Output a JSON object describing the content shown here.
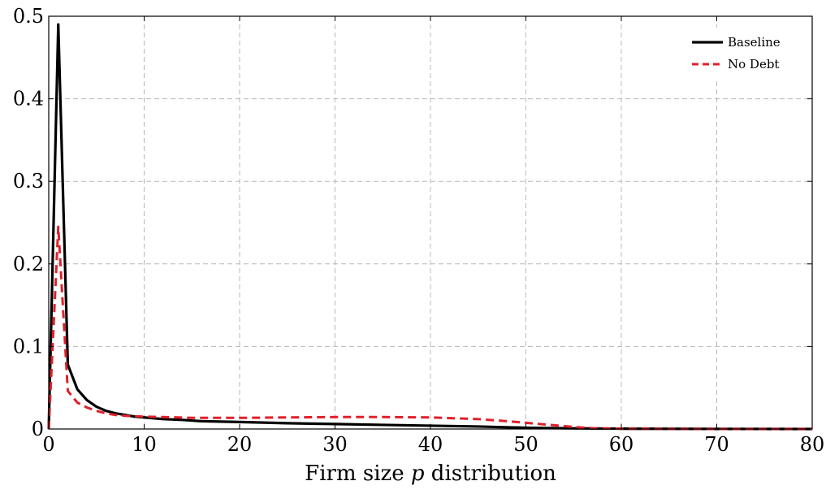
{
  "chart_data": {
    "type": "line",
    "title": "",
    "xlabel_prefix": "Firm size ",
    "xlabel_var": "p",
    "xlabel_suffix": " distribution",
    "ylabel": "",
    "xlim": [
      0,
      80
    ],
    "ylim": [
      0,
      0.5
    ],
    "xticks": [
      0,
      10,
      20,
      30,
      40,
      50,
      60,
      70,
      80
    ],
    "yticks": [
      0,
      0.1,
      0.2,
      0.3,
      0.4,
      0.5
    ],
    "xtick_labels": [
      "0",
      "10",
      "20",
      "30",
      "40",
      "50",
      "60",
      "70",
      "80"
    ],
    "ytick_labels": [
      "0",
      "0.1",
      "0.2",
      "0.3",
      "0.4",
      "0.5"
    ],
    "grid": true,
    "legend_position": "top-right",
    "series": [
      {
        "name": "Baseline",
        "color": "#000000",
        "style": "solid",
        "x": [
          0,
          1,
          2,
          3,
          4,
          5,
          6,
          7,
          8,
          9,
          10,
          12,
          14,
          16,
          18,
          20,
          25,
          30,
          35,
          40,
          45,
          50,
          55,
          60,
          70,
          80
        ],
        "y": [
          0,
          0.49,
          0.078,
          0.048,
          0.035,
          0.027,
          0.022,
          0.019,
          0.017,
          0.015,
          0.014,
          0.012,
          0.011,
          0.0095,
          0.009,
          0.0085,
          0.007,
          0.006,
          0.005,
          0.004,
          0.003,
          0.0015,
          0.0008,
          0.0004,
          0.0001,
          0
        ]
      },
      {
        "name": "No Debt",
        "color": "#e0202a",
        "style": "dashed",
        "x": [
          0,
          1,
          2,
          3,
          4,
          5,
          6,
          7,
          8,
          9,
          10,
          12,
          15,
          20,
          25,
          30,
          35,
          40,
          45,
          48,
          50,
          53,
          55,
          57,
          60,
          70,
          80
        ],
        "y": [
          0,
          0.245,
          0.046,
          0.032,
          0.026,
          0.022,
          0.019,
          0.017,
          0.016,
          0.0155,
          0.015,
          0.0145,
          0.0135,
          0.0135,
          0.014,
          0.0145,
          0.0145,
          0.014,
          0.012,
          0.0095,
          0.0075,
          0.0045,
          0.0025,
          0.001,
          0.0003,
          0,
          0
        ]
      }
    ]
  }
}
